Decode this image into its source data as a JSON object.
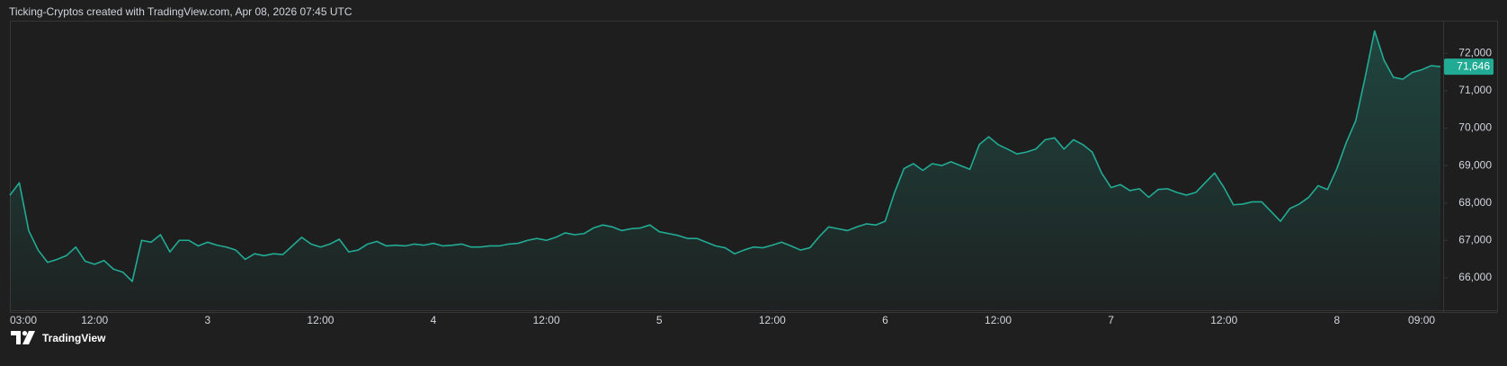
{
  "header": "Ticking-Cryptos created with TradingView.com, Apr 08, 2026 07:45 UTC",
  "brand": "TradingView",
  "chart_data": {
    "type": "area",
    "color": "#22ab94",
    "grid": false,
    "ylim": [
      65130,
      72850
    ],
    "yticks": [
      {
        "value": 66000,
        "label": "66,000"
      },
      {
        "value": 67000,
        "label": "67,000"
      },
      {
        "value": 68000,
        "label": "68,000"
      },
      {
        "value": 69000,
        "label": "69,000"
      },
      {
        "value": 70000,
        "label": "70,000"
      },
      {
        "value": 71000,
        "label": "71,000"
      },
      {
        "value": 72000,
        "label": "72,000"
      }
    ],
    "last_label": "71,646",
    "categories": [
      "03:00",
      null,
      null,
      null,
      null,
      null,
      null,
      null,
      null,
      "12:00",
      null,
      null,
      null,
      null,
      null,
      null,
      null,
      null,
      null,
      null,
      null,
      "3",
      null,
      null,
      null,
      null,
      null,
      null,
      null,
      null,
      null,
      null,
      null,
      "12:00",
      null,
      null,
      null,
      null,
      null,
      null,
      null,
      null,
      null,
      null,
      null,
      "4",
      null,
      null,
      null,
      null,
      null,
      null,
      null,
      null,
      null,
      null,
      null,
      "12:00",
      null,
      null,
      null,
      null,
      null,
      null,
      null,
      null,
      null,
      null,
      null,
      "5",
      null,
      null,
      null,
      null,
      null,
      null,
      null,
      null,
      null,
      null,
      null,
      "12:00",
      null,
      null,
      null,
      null,
      null,
      null,
      null,
      null,
      null,
      null,
      null,
      "6",
      null,
      null,
      null,
      null,
      null,
      null,
      null,
      null,
      null,
      null,
      null,
      "12:00",
      null,
      null,
      null,
      null,
      null,
      null,
      null,
      null,
      null,
      null,
      null,
      "7",
      null,
      null,
      null,
      null,
      null,
      null,
      null,
      null,
      null,
      null,
      null,
      "12:00",
      null,
      null,
      null,
      null,
      null,
      null,
      null,
      null,
      null,
      null,
      null,
      "8",
      null,
      null,
      null,
      null,
      null,
      null,
      null,
      null,
      "09:00",
      null,
      null
    ],
    "values": [
      68205,
      68540,
      67260,
      66740,
      66410,
      66490,
      66590,
      66820,
      66440,
      66360,
      66460,
      66230,
      66150,
      65900,
      67000,
      66950,
      67150,
      66690,
      67000,
      67000,
      66850,
      66950,
      66870,
      66820,
      66740,
      66490,
      66640,
      66590,
      66640,
      66620,
      66850,
      67080,
      66900,
      66820,
      66900,
      67030,
      66690,
      66740,
      66900,
      66970,
      66850,
      66870,
      66850,
      66900,
      66870,
      66920,
      66850,
      66870,
      66900,
      66820,
      66820,
      66850,
      66850,
      66900,
      66920,
      67000,
      67050,
      67000,
      67080,
      67200,
      67150,
      67180,
      67330,
      67410,
      67360,
      67260,
      67310,
      67330,
      67410,
      67230,
      67180,
      67130,
      67050,
      67050,
      66950,
      66850,
      66800,
      66640,
      66740,
      66820,
      66800,
      66870,
      66950,
      66850,
      66740,
      66800,
      67100,
      67360,
      67310,
      67260,
      67360,
      67440,
      67410,
      67510,
      68280,
      68920,
      69050,
      68870,
      69050,
      69000,
      69100,
      69000,
      68900,
      69560,
      69770,
      69560,
      69440,
      69310,
      69360,
      69440,
      69690,
      69740,
      69440,
      69690,
      69560,
      69360,
      68800,
      68410,
      68490,
      68330,
      68380,
      68150,
      68360,
      68380,
      68280,
      68210,
      68280,
      68540,
      68800,
      68410,
      67950,
      67970,
      68030,
      68030,
      67770,
      67510,
      67850,
      67970,
      68150,
      68460,
      68360,
      68920,
      69620,
      70200,
      71360,
      72600,
      71820,
      71360,
      71310,
      71490,
      71560,
      71670,
      71646
    ]
  }
}
